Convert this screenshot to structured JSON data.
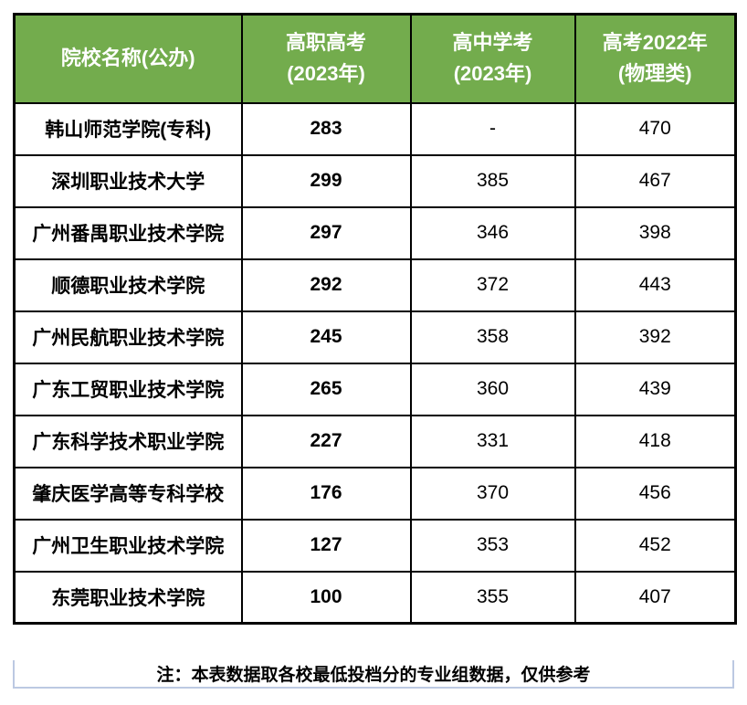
{
  "chart_data": {
    "type": "table",
    "title": "",
    "columns": [
      "院校名称(公办)",
      "高职高考(2023年)",
      "高中学考(2023年)",
      "高考2022年(物理类)"
    ],
    "header_lines": {
      "col1": {
        "line1": "院校名称(公办)",
        "line2": ""
      },
      "col2": {
        "line1": "高职高考",
        "line2": "(2023年)"
      },
      "col3": {
        "line1": "高中学考",
        "line2": "(2023年)"
      },
      "col4": {
        "line1": "高考2022年",
        "line2": "(物理类)"
      }
    },
    "rows": [
      [
        "韩山师范学院(专科)",
        "283",
        "-",
        "470"
      ],
      [
        "深圳职业技术大学",
        "299",
        "385",
        "467"
      ],
      [
        "广州番禺职业技术学院",
        "297",
        "346",
        "398"
      ],
      [
        "顺德职业技术学院",
        "292",
        "372",
        "443"
      ],
      [
        "广州民航职业技术学院",
        "245",
        "358",
        "392"
      ],
      [
        "广东工贸职业技术学院",
        "265",
        "360",
        "439"
      ],
      [
        "广东科学技术职业学院",
        "227",
        "331",
        "418"
      ],
      [
        "肇庆医学高等专科学校",
        "176",
        "370",
        "456"
      ],
      [
        "广州卫生职业技术学院",
        "127",
        "353",
        "452"
      ],
      [
        "东莞职业技术学院",
        "100",
        "355",
        "407"
      ]
    ],
    "note": "注：本表数据取各校最低投档分的专业组数据，仅供参考"
  },
  "colors": {
    "header_bg": "#73AC4D",
    "header_text": "#ffffff",
    "name_col_bg": "#FBF8E3",
    "gaozhi_col_bg": "#E2EFDA",
    "score_red": "#FE0000",
    "grid_border": "#000000",
    "note_border": "#BCC9E2"
  }
}
